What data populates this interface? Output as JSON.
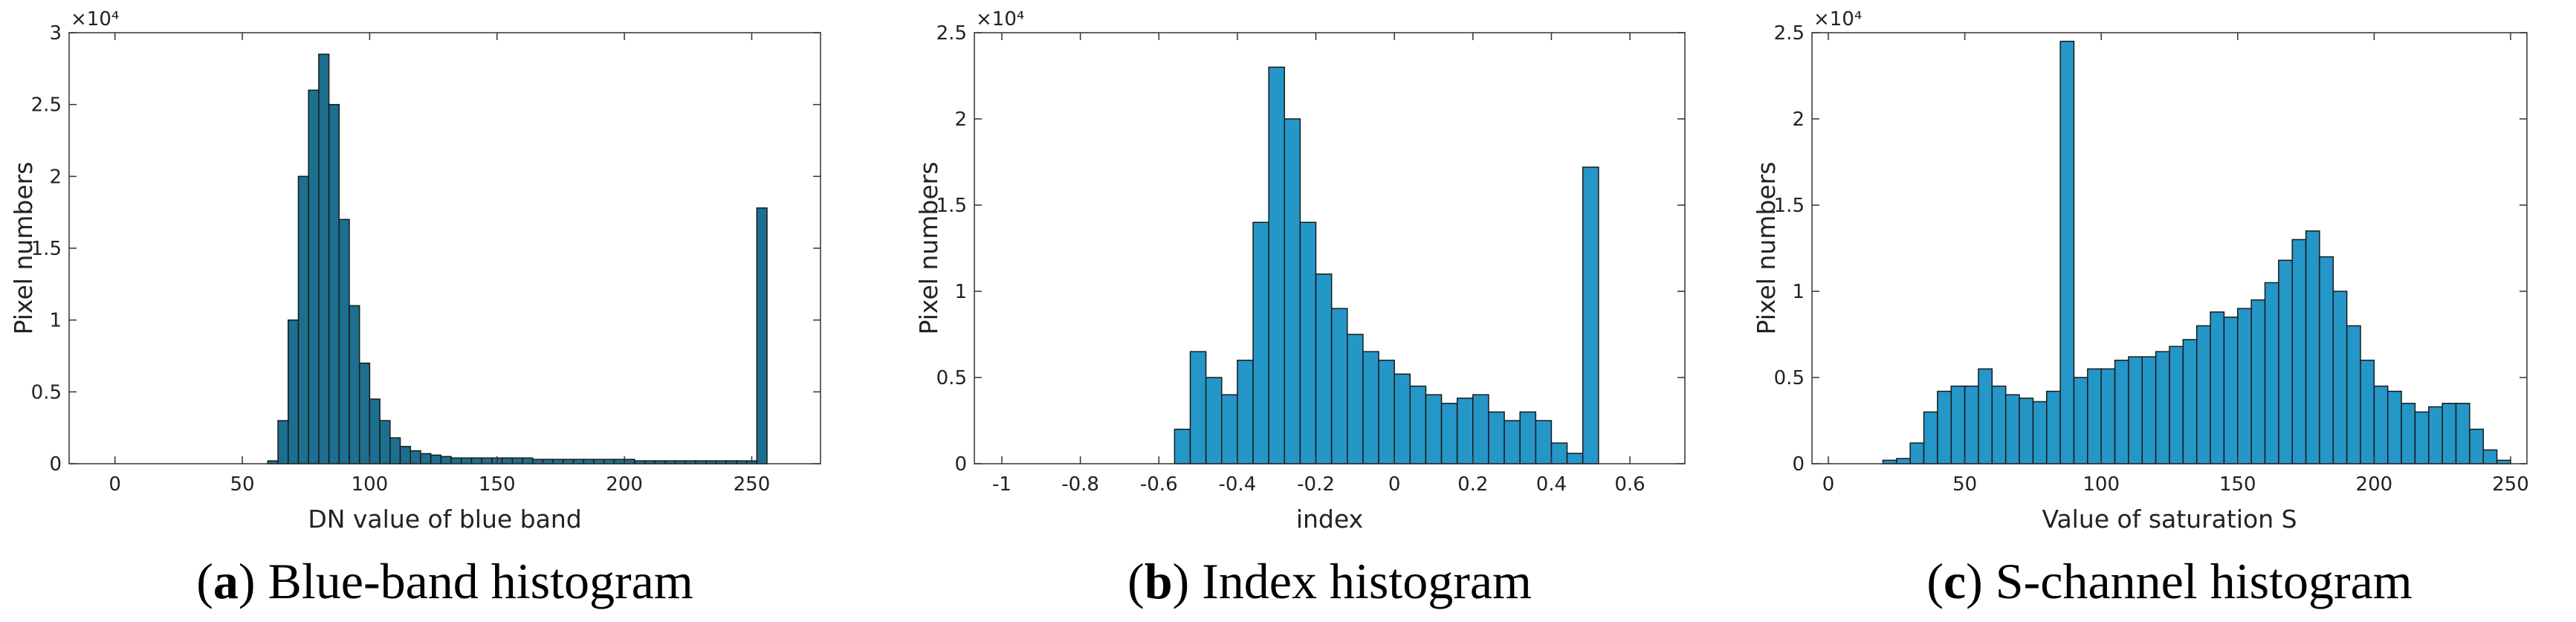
{
  "chart_data": [
    {
      "type": "histogram",
      "color": "#1d6f8f",
      "xlabel": "DN value of blue band",
      "ylabel": "Pixel numbers",
      "y_multiplier": "×10⁴",
      "caption": {
        "open": "(",
        "label": "a",
        "rest": ") Blue-band histogram"
      },
      "xlim": [
        -18,
        277
      ],
      "ylim": [
        0,
        3
      ],
      "xticks": [
        0,
        50,
        100,
        150,
        200,
        250
      ],
      "yticks": [
        0,
        0.5,
        1,
        1.5,
        2,
        2.5,
        3
      ],
      "bins": [
        60,
        64,
        68,
        72,
        76,
        80,
        84,
        88,
        92,
        96,
        100,
        104,
        108,
        112,
        116,
        120,
        124,
        128,
        132,
        136,
        140,
        144,
        148,
        152,
        156,
        160,
        164,
        168,
        172,
        176,
        180,
        184,
        188,
        192,
        196,
        200,
        204,
        208,
        212,
        216,
        220,
        224,
        228,
        232,
        236,
        240,
        244,
        248,
        252,
        256
      ],
      "values": [
        0.02,
        0.3,
        1.0,
        2.0,
        2.6,
        2.85,
        2.5,
        1.7,
        1.1,
        0.7,
        0.45,
        0.3,
        0.18,
        0.12,
        0.09,
        0.07,
        0.06,
        0.05,
        0.04,
        0.04,
        0.04,
        0.04,
        0.04,
        0.04,
        0.04,
        0.04,
        0.03,
        0.03,
        0.03,
        0.03,
        0.03,
        0.03,
        0.03,
        0.03,
        0.03,
        0.03,
        0.02,
        0.02,
        0.02,
        0.02,
        0.02,
        0.02,
        0.02,
        0.02,
        0.02,
        0.02,
        0.02,
        0.02,
        1.78
      ]
    },
    {
      "type": "histogram",
      "color": "#2596c8",
      "xlabel": "index",
      "ylabel": "Pixel numbers",
      "y_multiplier": "×10⁴",
      "caption": {
        "open": "(",
        "label": "b",
        "rest": ") Index histogram"
      },
      "xlim": [
        -1.07,
        0.74
      ],
      "ylim": [
        0,
        2.5
      ],
      "xticks": [
        -1,
        -0.8,
        -0.6,
        -0.4,
        -0.2,
        0,
        0.2,
        0.4,
        0.6
      ],
      "yticks": [
        0,
        0.5,
        1,
        1.5,
        2,
        2.5
      ],
      "bins": [
        -0.56,
        -0.52,
        -0.48,
        -0.44,
        -0.4,
        -0.36,
        -0.32,
        -0.28,
        -0.24,
        -0.2,
        -0.16,
        -0.12,
        -0.08,
        -0.04,
        0,
        0.04,
        0.08,
        0.12,
        0.16,
        0.2,
        0.24,
        0.28,
        0.32,
        0.36,
        0.4,
        0.44,
        0.48,
        0.52
      ],
      "values": [
        0.2,
        0.65,
        0.5,
        0.4,
        0.6,
        1.4,
        2.3,
        2.0,
        1.4,
        1.1,
        0.9,
        0.75,
        0.65,
        0.6,
        0.52,
        0.45,
        0.4,
        0.35,
        0.38,
        0.4,
        0.3,
        0.25,
        0.3,
        0.25,
        0.12,
        0.06,
        1.72
      ]
    },
    {
      "type": "histogram",
      "color": "#2596c8",
      "xlabel": "Value of saturation S",
      "ylabel": "Pixel numbers",
      "y_multiplier": "×10⁴",
      "caption": {
        "open": "(",
        "label": "c",
        "rest": ") S-channel histogram"
      },
      "xlim": [
        -6,
        256
      ],
      "ylim": [
        0,
        2.5
      ],
      "xticks": [
        0,
        50,
        100,
        150,
        200,
        250
      ],
      "yticks": [
        0,
        0.5,
        1,
        1.5,
        2,
        2.5
      ],
      "bins": [
        20,
        25,
        30,
        35,
        40,
        45,
        50,
        55,
        60,
        65,
        70,
        75,
        80,
        85,
        90,
        95,
        100,
        105,
        110,
        115,
        120,
        125,
        130,
        135,
        140,
        145,
        150,
        155,
        160,
        165,
        170,
        175,
        180,
        185,
        190,
        195,
        200,
        205,
        210,
        215,
        220,
        225,
        230,
        235,
        240,
        245,
        250
      ],
      "values": [
        0.02,
        0.03,
        0.12,
        0.3,
        0.42,
        0.45,
        0.45,
        0.55,
        0.45,
        0.4,
        0.38,
        0.36,
        0.42,
        2.45,
        0.5,
        0.55,
        0.55,
        0.6,
        0.62,
        0.62,
        0.65,
        0.68,
        0.72,
        0.8,
        0.88,
        0.85,
        0.9,
        0.95,
        1.05,
        1.18,
        1.3,
        1.35,
        1.2,
        1.0,
        0.8,
        0.6,
        0.45,
        0.42,
        0.35,
        0.3,
        0.33,
        0.35,
        0.35,
        0.2,
        0.08,
        0.02
      ]
    }
  ]
}
